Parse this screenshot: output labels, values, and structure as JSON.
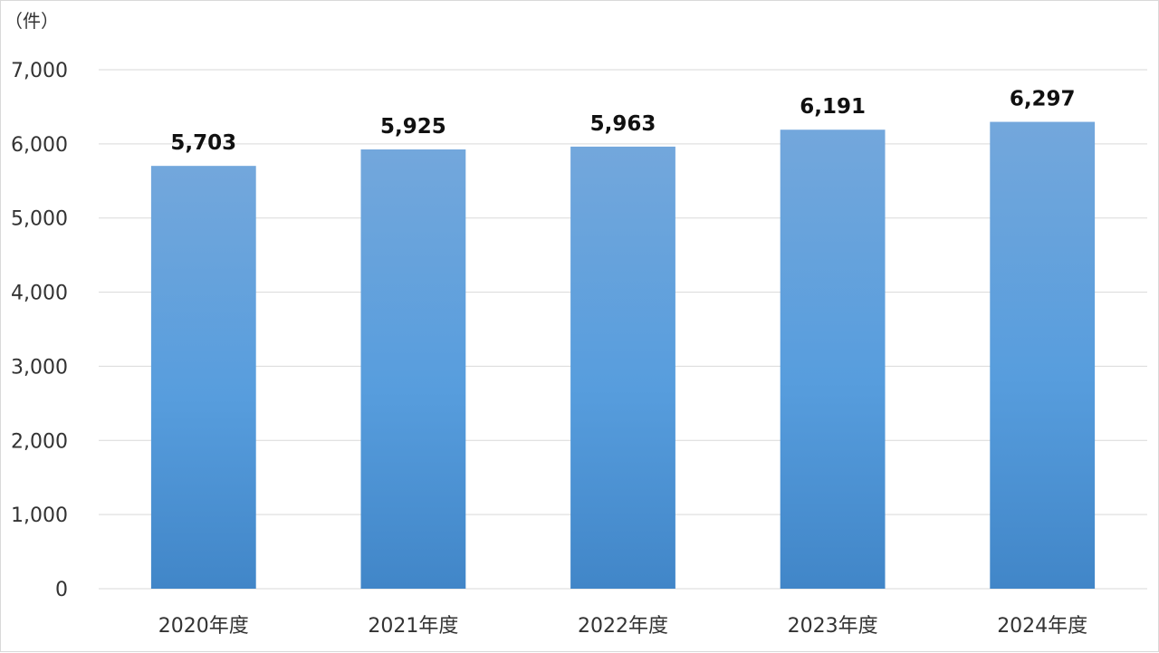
{
  "chart_data": {
    "type": "bar",
    "title": "",
    "xlabel": "",
    "ylabel": "（件）",
    "categories": [
      "2020年度",
      "2021年度",
      "2022年度",
      "2023年度",
      "2024年度"
    ],
    "values": [
      5703,
      5925,
      5963,
      6191,
      6297
    ],
    "data_labels": [
      "5,703",
      "5,925",
      "5,963",
      "6,191",
      "6,297"
    ],
    "ylim": [
      0,
      7000
    ],
    "yticks": [
      0,
      1000,
      2000,
      3000,
      4000,
      5000,
      6000,
      7000
    ],
    "ytick_labels": [
      "0",
      "1,000",
      "2,000",
      "3,000",
      "4,000",
      "5,000",
      "6,000",
      "7,000"
    ],
    "grid": true,
    "legend": "none",
    "colors": {
      "bar_top": "#73a7dc",
      "bar_mid": "#579ddd",
      "bar_bottom": "#4186c8"
    }
  }
}
